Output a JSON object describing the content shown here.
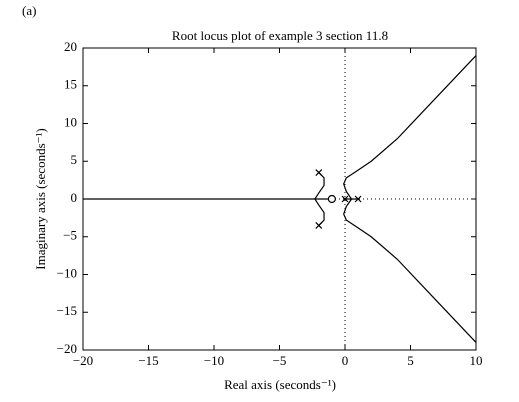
{
  "panel_label": "(a)",
  "chart_data": {
    "type": "line",
    "title": "Root locus plot of example 3 section 11.8",
    "xlabel": "Real axis (seconds⁻¹)",
    "ylabel": "Imaginary axis (seconds⁻¹)",
    "xlim": [
      -20,
      10
    ],
    "ylim": [
      -20,
      20
    ],
    "xticks": [
      {
        "value": -20,
        "label": "−20"
      },
      {
        "value": -15,
        "label": "−15"
      },
      {
        "value": -10,
        "label": "−10"
      },
      {
        "value": -5,
        "label": "−5"
      },
      0,
      5,
      10
    ],
    "yticks": [
      {
        "value": -20,
        "label": "−20"
      },
      {
        "value": -15,
        "label": "−15"
      },
      {
        "value": -10,
        "label": "−10"
      },
      {
        "value": -5,
        "label": "−5"
      },
      0,
      5,
      10,
      15,
      20
    ],
    "zero_lines": true,
    "color": "#000000",
    "series": [
      {
        "x": [
          -2,
          -1.6,
          -1.6,
          -2,
          -2.3,
          -20
        ],
        "values": [
          3.5,
          2.8,
          1.8,
          0.8,
          0,
          0
        ]
      },
      {
        "x": [
          -2,
          -1.6,
          -1.6,
          -2,
          -2.3,
          -1
        ],
        "values": [
          -3.5,
          -2.8,
          -1.8,
          -0.8,
          0,
          0
        ]
      },
      {
        "x": [
          0,
          0.5,
          0.1,
          -0.1,
          0.1,
          0.8,
          2,
          4,
          7,
          10
        ],
        "values": [
          0,
          0,
          1,
          2,
          2.8,
          3.6,
          5,
          8,
          13.5,
          19
        ]
      },
      {
        "x": [
          1,
          0.5,
          0.1,
          -0.1,
          0.1,
          0.8,
          2,
          4,
          7,
          10
        ],
        "values": [
          0,
          0,
          -1,
          -2,
          -2.8,
          -3.6,
          -5,
          -8,
          -13.5,
          -19
        ]
      },
      {
        "marker": "x",
        "x": [
          -2,
          -2,
          0,
          1
        ],
        "values": [
          3.5,
          -3.5,
          0,
          0
        ]
      },
      {
        "marker": "o",
        "x": [
          -1
        ],
        "values": [
          0
        ]
      }
    ]
  }
}
